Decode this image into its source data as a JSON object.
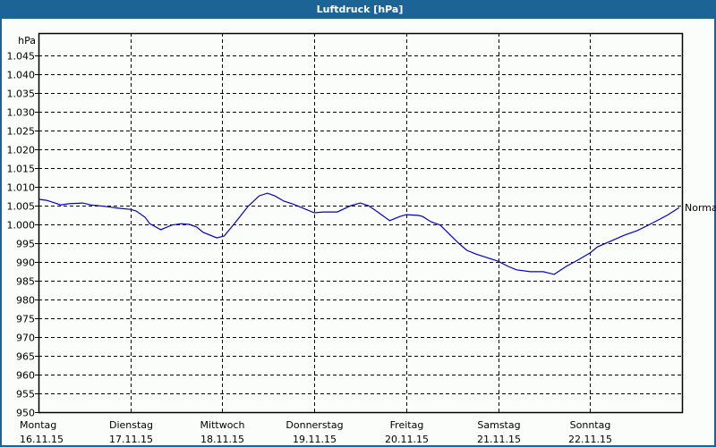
{
  "window": {
    "title": "Luftdruck [hPa]"
  },
  "colors": {
    "titlebar": "#1d6496",
    "line": "#0000c8",
    "grid": "#000000",
    "background": "#fbfdfb"
  },
  "chart_data": {
    "type": "line",
    "title": "Luftdruck [hPa]",
    "xlabel": "",
    "ylabel": "hPa",
    "ylim": [
      950,
      1048
    ],
    "yticks": [
      "950",
      "955",
      "960",
      "965",
      "970",
      "975",
      "980",
      "985",
      "990",
      "995",
      "1.000",
      "1.005",
      "1.010",
      "1.015",
      "1.020",
      "1.025",
      "1.030",
      "1.035",
      "1.040",
      "1.045"
    ],
    "ytick_values": [
      950,
      955,
      960,
      965,
      970,
      975,
      980,
      985,
      990,
      995,
      1000,
      1005,
      1010,
      1015,
      1020,
      1025,
      1030,
      1035,
      1040,
      1045
    ],
    "categories": [
      {
        "day": "Montag",
        "date": "16.11.15"
      },
      {
        "day": "Dienstag",
        "date": "17.11.15"
      },
      {
        "day": "Mittwoch",
        "date": "18.11.15"
      },
      {
        "day": "Donnerstag",
        "date": "19.11.15"
      },
      {
        "day": "Freitag",
        "date": "20.11.15"
      },
      {
        "day": "Samstag",
        "date": "21.11.15"
      },
      {
        "day": "Sonntag",
        "date": "22.11.15"
      }
    ],
    "grid": true,
    "legend": null,
    "annotation": {
      "label": "Normal",
      "value": 1004.5
    },
    "series": [
      {
        "name": "Luftdruck",
        "x_days": [
          0,
          0.09,
          0.18,
          0.24,
          0.33,
          0.48,
          0.57,
          0.72,
          0.87,
          1.0,
          1.06,
          1.16,
          1.21,
          1.33,
          1.45,
          1.55,
          1.64,
          1.72,
          1.79,
          1.94,
          2.02,
          2.13,
          2.28,
          2.4,
          2.49,
          2.57,
          2.67,
          2.76,
          2.86,
          3.0,
          3.1,
          3.25,
          3.4,
          3.5,
          3.59,
          3.69,
          3.82,
          3.93,
          4.0,
          4.13,
          4.18,
          4.27,
          4.37,
          4.47,
          4.57,
          4.66,
          4.76,
          4.91,
          5.0,
          5.11,
          5.2,
          5.35,
          5.49,
          5.61,
          5.74,
          5.88,
          6.0,
          6.08,
          6.22,
          6.37,
          6.51,
          6.61,
          6.76,
          6.85,
          6.97
        ],
        "values": [
          1006.7,
          1006.4,
          1005.7,
          1005.2,
          1005.5,
          1005.7,
          1005.2,
          1004.8,
          1004.3,
          1004.0,
          1003.6,
          1001.9,
          1000.2,
          998.6,
          999.8,
          1000.2,
          1000.0,
          999.3,
          997.9,
          996.4,
          996.9,
          1000.2,
          1004.8,
          1007.6,
          1008.3,
          1007.6,
          1006.2,
          1005.5,
          1004.5,
          1003.1,
          1003.3,
          1003.3,
          1005.0,
          1005.7,
          1005.0,
          1003.3,
          1001.0,
          1002.1,
          1002.6,
          1002.4,
          1002.1,
          1000.7,
          999.8,
          997.4,
          995.0,
          993.1,
          992.1,
          990.9,
          990.2,
          988.8,
          987.9,
          987.4,
          987.4,
          986.7,
          988.8,
          990.7,
          992.4,
          994.0,
          995.5,
          997.1,
          998.3,
          999.5,
          1001.4,
          1002.6,
          1004.5
        ]
      }
    ]
  }
}
